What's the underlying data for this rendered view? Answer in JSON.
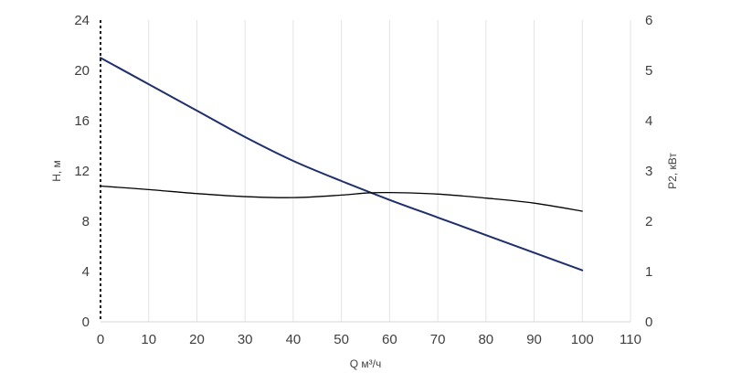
{
  "chart_data": {
    "type": "line",
    "xlabel": "Q м³/ч",
    "ylabel_left": "H, м",
    "ylabel_right": "P2, кВт",
    "xlim": [
      0,
      110
    ],
    "ylim_left": [
      0,
      24
    ],
    "ylim_right": [
      0,
      6
    ],
    "x_ticks": [
      0,
      10,
      20,
      30,
      40,
      50,
      60,
      70,
      80,
      90,
      100,
      110
    ],
    "y_left_ticks": [
      0,
      4,
      8,
      12,
      16,
      20,
      24
    ],
    "y_right_ticks": [
      0,
      1,
      2,
      3,
      4,
      5,
      6
    ],
    "grid": "vertical",
    "series": [
      {
        "axis": "left",
        "color": "#1f2f6b",
        "points": [
          [
            0,
            21.0
          ],
          [
            10,
            18.9
          ],
          [
            20,
            16.8
          ],
          [
            30,
            14.7
          ],
          [
            40,
            12.8
          ],
          [
            50,
            11.2
          ],
          [
            60,
            9.7
          ],
          [
            70,
            8.3
          ],
          [
            80,
            6.9
          ],
          [
            90,
            5.5
          ],
          [
            100,
            4.1
          ]
        ]
      },
      {
        "axis": "right",
        "color": "#000000",
        "points": [
          [
            0,
            2.7
          ],
          [
            10,
            2.63
          ],
          [
            20,
            2.55
          ],
          [
            30,
            2.49
          ],
          [
            40,
            2.47
          ],
          [
            50,
            2.52
          ],
          [
            55,
            2.56
          ],
          [
            60,
            2.57
          ],
          [
            70,
            2.54
          ],
          [
            80,
            2.46
          ],
          [
            90,
            2.36
          ],
          [
            100,
            2.2
          ]
        ]
      }
    ]
  }
}
